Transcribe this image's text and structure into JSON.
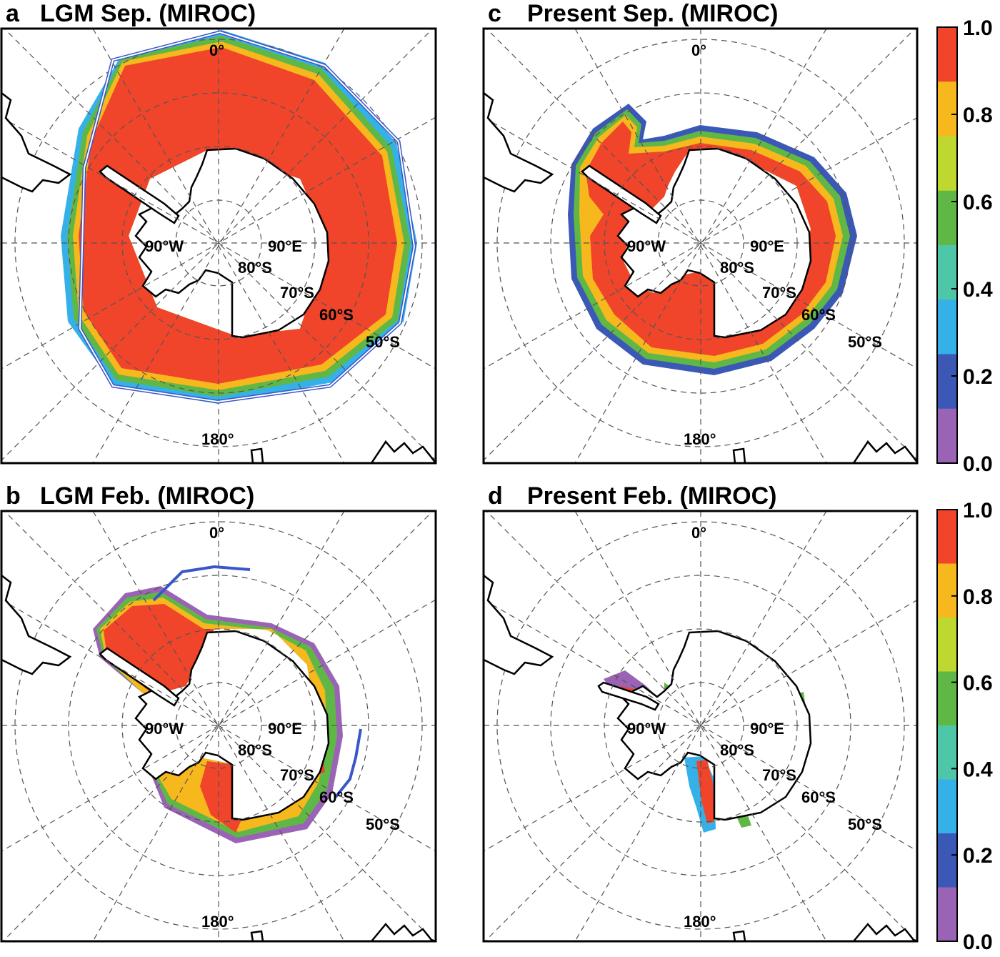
{
  "panels": [
    {
      "id": "a",
      "letter": "a",
      "title": "LGM Sep. (MIROC)"
    },
    {
      "id": "b",
      "letter": "b",
      "title": "LGM Feb. (MIROC)"
    },
    {
      "id": "c",
      "letter": "c",
      "title": "Present Sep. (MIROC)"
    },
    {
      "id": "d",
      "letter": "d",
      "title": "Present Feb. (MIROC)"
    }
  ],
  "map_labels": {
    "lon_0": "0°",
    "lon_180": "180°",
    "lon_90w": "90°W",
    "lon_90e": "90°E",
    "lat_80": "80°S",
    "lat_70": "70°S",
    "lat_60": "60°S",
    "lat_50": "50°S"
  },
  "colorbar": {
    "ticks": [
      "1.0",
      "0.8",
      "0.6",
      "0.4",
      "0.2",
      "0.0"
    ],
    "colors": [
      "#f0452a",
      "#f6b81c",
      "#bfd82f",
      "#5fb845",
      "#4ec6a8",
      "#35b1e8",
      "#3b58b6",
      "#9b63b5"
    ]
  },
  "colors": {
    "ice_core": "#f0452a",
    "front_line": "#3a56c8",
    "grid": "#555555"
  }
}
